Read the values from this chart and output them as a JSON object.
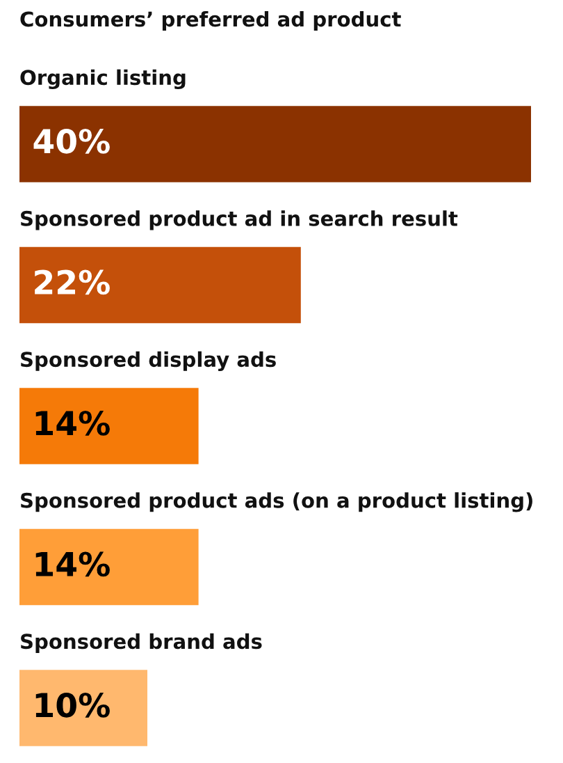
{
  "chart_data": {
    "type": "bar",
    "orientation": "horizontal",
    "title": "Consumers’ preferred ad product",
    "categories": [
      "Organic listing",
      "Sponsored product ad in search result",
      "Sponsored display ads",
      "Sponsored product ads (on a product listing)",
      "Sponsored brand ads"
    ],
    "values": [
      40,
      22,
      14,
      14,
      10
    ],
    "colors": [
      "#8b3200",
      "#c4500a",
      "#f57a08",
      "#ff9e38",
      "#ffb86e"
    ],
    "value_labels": [
      "40%",
      "22%",
      "14%",
      "14%",
      "10%"
    ]
  }
}
